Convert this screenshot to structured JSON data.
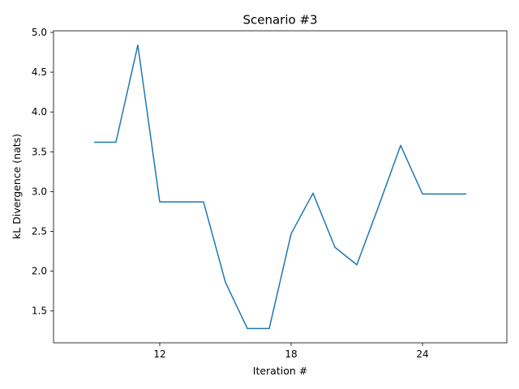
{
  "chart_data": {
    "type": "line",
    "title": "Scenario #3",
    "xlabel": "Iteration #",
    "ylabel": "kL Divergence (nats)",
    "x": [
      9,
      10,
      11,
      12,
      13,
      14,
      15,
      16,
      17,
      18,
      19,
      20,
      21,
      22,
      23,
      24,
      25,
      26
    ],
    "series": [
      {
        "values": [
          3.62,
          3.62,
          4.84,
          2.87,
          2.87,
          2.87,
          1.86,
          1.28,
          1.28,
          2.47,
          2.98,
          2.3,
          2.08,
          2.82,
          3.58,
          2.97,
          2.97,
          2.97
        ],
        "color": "#1f77b4"
      }
    ],
    "xlim": [
      7.15,
      27.85
    ],
    "ylim": [
      1.1,
      5.02
    ],
    "xticks": [
      12,
      18,
      24
    ],
    "yticks": [
      1.5,
      2.0,
      2.5,
      3.0,
      3.5,
      4.0,
      4.5,
      5.0
    ],
    "ytick_labels": [
      "1.5",
      "2.0",
      "2.5",
      "3.0",
      "3.5",
      "4.0",
      "4.5",
      "5.0"
    ],
    "grid": false,
    "legend": false
  }
}
